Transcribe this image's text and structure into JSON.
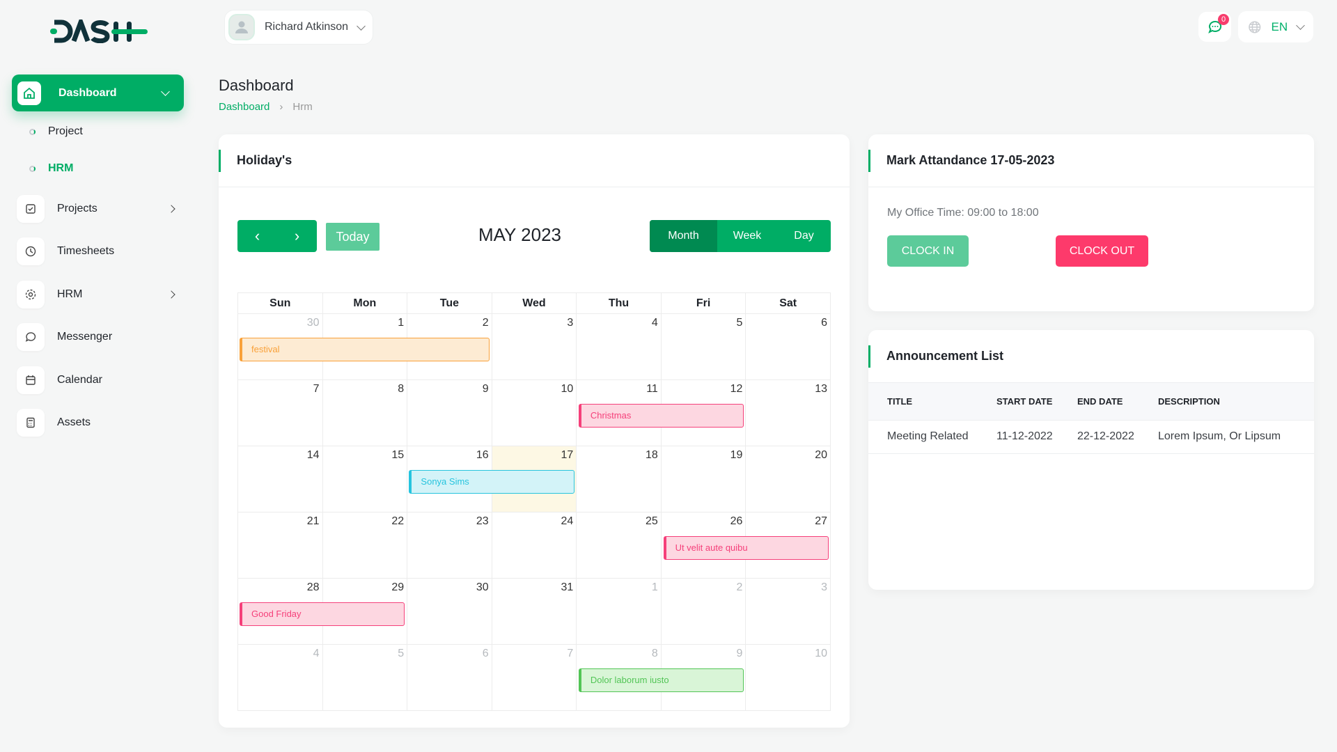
{
  "brand": "DASH",
  "header": {
    "user_name": "Richard Atkinson",
    "notification_count": "0",
    "language": "EN"
  },
  "sidebar": {
    "active": "Dashboard",
    "sub_items": [
      {
        "label": "Project"
      },
      {
        "label": "HRM"
      }
    ],
    "items": [
      {
        "label": "Projects",
        "icon": "checkbox-icon"
      },
      {
        "label": "Timesheets",
        "icon": "clock-icon"
      },
      {
        "label": "HRM",
        "icon": "gear-icon"
      },
      {
        "label": "Messenger",
        "icon": "chat-icon"
      },
      {
        "label": "Calendar",
        "icon": "calendar-icon"
      },
      {
        "label": "Assets",
        "icon": "calculator-icon"
      }
    ]
  },
  "page": {
    "title": "Dashboard",
    "breadcrumb": [
      "Dashboard",
      "Hrm"
    ]
  },
  "holidays": {
    "title": "Holiday's",
    "today_label": "Today",
    "month_title": "MAY 2023",
    "views": [
      "Month",
      "Week",
      "Day"
    ],
    "active_view": "Month",
    "weekdays": [
      "Sun",
      "Mon",
      "Tue",
      "Wed",
      "Thu",
      "Fri",
      "Sat"
    ],
    "weeks": [
      [
        "30",
        "1",
        "2",
        "3",
        "4",
        "5",
        "6"
      ],
      [
        "7",
        "8",
        "9",
        "10",
        "11",
        "12",
        "13"
      ],
      [
        "14",
        "15",
        "16",
        "17",
        "18",
        "19",
        "20"
      ],
      [
        "21",
        "22",
        "23",
        "24",
        "25",
        "26",
        "27"
      ],
      [
        "28",
        "29",
        "30",
        "31",
        "1",
        "2",
        "3"
      ],
      [
        "4",
        "5",
        "6",
        "7",
        "8",
        "9",
        "10"
      ]
    ],
    "events": [
      {
        "title": "festival",
        "week": 0,
        "start": 0,
        "span": 3,
        "bg": "#fdebd3",
        "color": "#f9a13a"
      },
      {
        "title": "Christmas",
        "week": 1,
        "start": 4,
        "span": 2,
        "bg": "#fdd7e1",
        "color": "#f5407a"
      },
      {
        "title": "Sonya Sims",
        "week": 2,
        "start": 2,
        "span": 2,
        "bg": "#d3f3f8",
        "color": "#26c4de"
      },
      {
        "title": "Ut velit aute quibu",
        "week": 3,
        "start": 5,
        "span": 2,
        "bg": "#fdd7e1",
        "color": "#f5407a"
      },
      {
        "title": "Good Friday",
        "week": 4,
        "start": 0,
        "span": 2,
        "bg": "#fdd7e1",
        "color": "#f5407a"
      },
      {
        "title": "Dolor laborum iusto",
        "week": 5,
        "start": 4,
        "span": 2,
        "bg": "#d9f5d7",
        "color": "#52c556"
      }
    ]
  },
  "attendance": {
    "title": "Mark Attandance 17-05-2023",
    "office_time": "My Office Time: 09:00 to 18:00",
    "clock_in": "CLOCK IN",
    "clock_out": "CLOCK OUT"
  },
  "announcements": {
    "title": "Announcement List",
    "columns": [
      "TITLE",
      "START DATE",
      "END DATE",
      "DESCRIPTION"
    ],
    "rows": [
      [
        "Meeting Related",
        "11-12-2022",
        "22-12-2022",
        "Lorem Ipsum, Or Lipsum"
      ]
    ]
  },
  "colors": {
    "primary": "#00ad65",
    "danger": "#fd3a6b",
    "clock_in": "#5ccb9a"
  }
}
